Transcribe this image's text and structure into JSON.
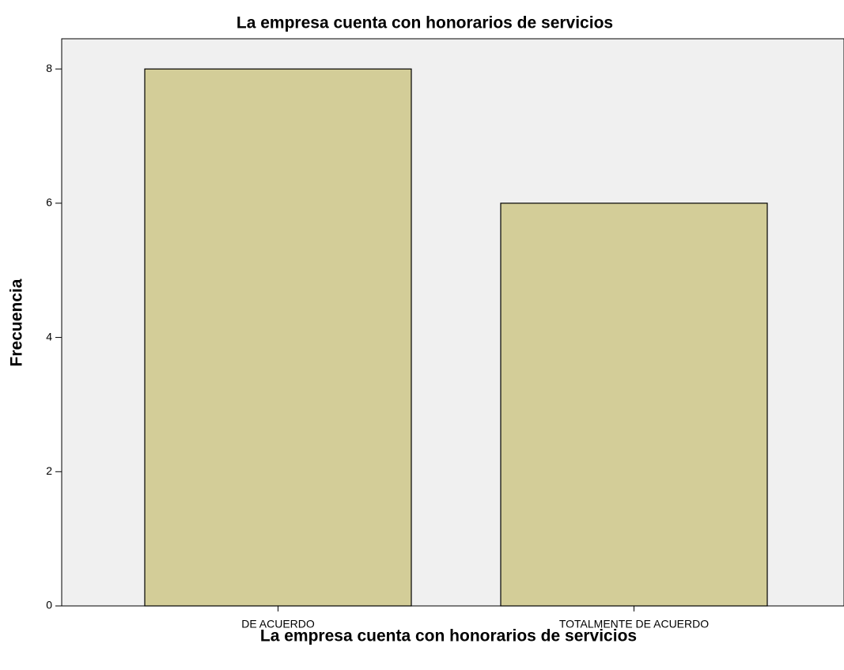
{
  "chart_data": {
    "type": "bar",
    "title": "La empresa cuenta con honorarios de servicios",
    "x_label": "La empresa cuenta con honorarios de servicios",
    "y_label": "Frecuencia",
    "categories": [
      "DE ACUERDO",
      "TOTALMENTE DE ACUERDO"
    ],
    "values": [
      8,
      6
    ],
    "color": "#d3cd98",
    "ylim": [
      0,
      8.45
    ],
    "yticks": [
      0,
      2,
      4,
      6,
      8
    ],
    "grid": false
  }
}
